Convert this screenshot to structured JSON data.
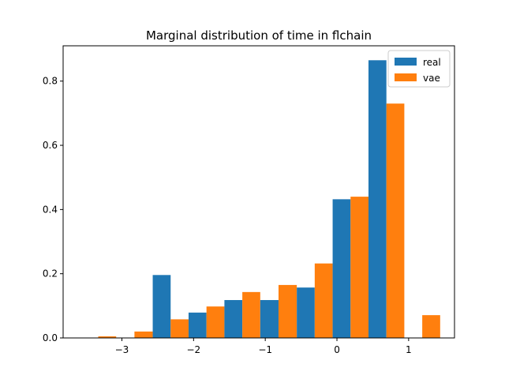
{
  "chart_data": {
    "type": "bar",
    "title": "Marginal distribution of time in flchain",
    "xlabel": "",
    "ylabel": "",
    "xlim": [
      -3.82,
      1.64
    ],
    "ylim": [
      0,
      0.91
    ],
    "xticks": [
      -3,
      -2,
      -1,
      0,
      1
    ],
    "xtick_labels": [
      "−3",
      "−2",
      "−1",
      "0",
      "1"
    ],
    "yticks": [
      0.0,
      0.2,
      0.4,
      0.6,
      0.8
    ],
    "ytick_labels": [
      "0.0",
      "0.2",
      "0.4",
      "0.6",
      "0.8"
    ],
    "bin_edges": [
      -3.58,
      -3.08,
      -2.57,
      -2.07,
      -1.57,
      -1.07,
      -0.56,
      -0.06,
      0.44,
      0.94,
      1.44
    ],
    "series": [
      {
        "name": "real",
        "color": "#1f77b4",
        "values": [
          0.0,
          0.0,
          0.196,
          0.079,
          0.118,
          0.118,
          0.157,
          0.432,
          0.865,
          0.0
        ]
      },
      {
        "name": "vae",
        "color": "#ff7f0e",
        "values": [
          0.005,
          0.02,
          0.058,
          0.098,
          0.143,
          0.165,
          0.232,
          0.44,
          0.73,
          0.071
        ]
      }
    ],
    "grid": false,
    "legend_position": "top-right"
  }
}
